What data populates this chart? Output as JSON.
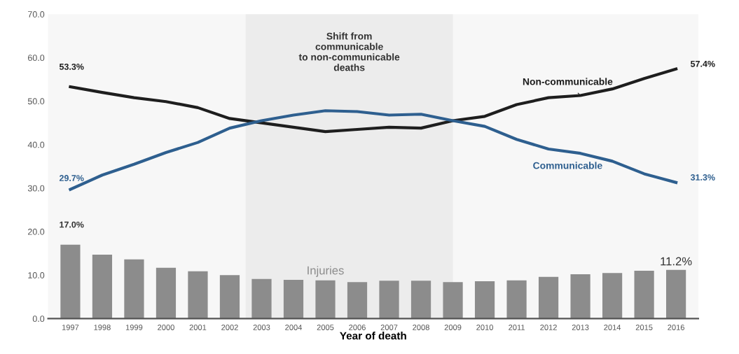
{
  "chart_data": {
    "type": "line",
    "xlabel": "Year of death",
    "categories": [
      "1997",
      "1998",
      "1999",
      "2000",
      "2001",
      "2002",
      "2003",
      "2004",
      "2005",
      "2006",
      "2007",
      "2008",
      "2009",
      "2010",
      "2011",
      "2012",
      "2013",
      "2014",
      "2015",
      "2016"
    ],
    "series": [
      {
        "name": "Non-communicable",
        "color": "#1e1e1e",
        "values": [
          53.3,
          52.0,
          50.8,
          49.9,
          48.5,
          46.0,
          45.0,
          44.0,
          43.0,
          43.5,
          44.0,
          43.8,
          45.5,
          46.5,
          49.2,
          50.8,
          51.3,
          52.8,
          55.2,
          57.4
        ],
        "value_labels": [
          "53.3%",
          null,
          null,
          null,
          null,
          null,
          null,
          null,
          null,
          null,
          null,
          null,
          null,
          null,
          null,
          null,
          null,
          null,
          null,
          "57.4%"
        ]
      },
      {
        "name": "Communicable",
        "color": "#2e5f8f",
        "values": [
          29.7,
          33.0,
          35.5,
          38.2,
          40.5,
          43.8,
          45.5,
          46.8,
          47.8,
          47.6,
          46.8,
          47.0,
          45.5,
          44.2,
          41.2,
          39.0,
          38.0,
          36.2,
          33.3,
          31.3
        ],
        "value_labels": [
          "29.7%",
          null,
          null,
          null,
          null,
          null,
          null,
          null,
          null,
          null,
          null,
          null,
          null,
          null,
          null,
          null,
          null,
          null,
          null,
          "31.3%"
        ]
      },
      {
        "name": "Injuries",
        "type": "bar",
        "color": "#8c8c8c",
        "values": [
          17.0,
          14.7,
          13.6,
          11.7,
          10.9,
          10.0,
          9.1,
          8.9,
          8.8,
          8.4,
          8.7,
          8.7,
          8.4,
          8.6,
          8.8,
          9.6,
          10.2,
          10.5,
          11.0,
          11.2
        ],
        "value_labels": [
          "17.0%",
          null,
          null,
          null,
          null,
          null,
          null,
          null,
          null,
          null,
          null,
          null,
          null,
          null,
          null,
          null,
          null,
          null,
          null,
          "11.2%"
        ]
      }
    ],
    "ylim": [
      0,
      70
    ],
    "yticks": [
      {
        "value": 0,
        "label": "0.0"
      },
      {
        "value": 10,
        "label": "10.0"
      },
      {
        "value": 20,
        "label": "20.0"
      },
      {
        "value": 30,
        "label": "30.0"
      },
      {
        "value": 40,
        "label": "40.0"
      },
      {
        "value": 50,
        "label": "50.0"
      },
      {
        "value": 60,
        "label": "60.0"
      },
      {
        "value": 70,
        "label": "70.0"
      }
    ],
    "bands": [
      {
        "axis": "x",
        "from": "2003",
        "to": "2009",
        "label": "Shift from\ncommunicable\nto non-communicable\ndeaths",
        "color": "#ececec"
      }
    ],
    "grid": false,
    "legend": false,
    "marker": "none",
    "line_style": "solid"
  }
}
